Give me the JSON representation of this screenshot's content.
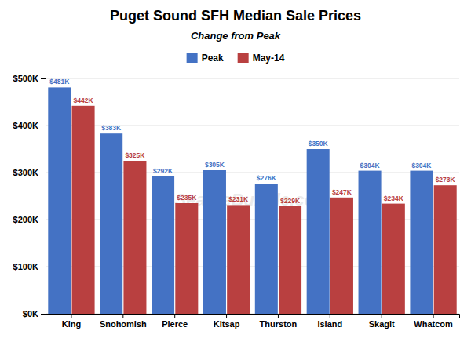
{
  "chart_data": {
    "type": "bar",
    "title": "Puget Sound SFH Median Sale Prices",
    "subtitle": "Change from Peak",
    "categories": [
      "King",
      "Snohomish",
      "Pierce",
      "Kitsap",
      "Thurston",
      "Island",
      "Skagit",
      "Whatcom"
    ],
    "series": [
      {
        "name": "Peak",
        "color": "#4472C4",
        "values": [
          481000,
          383000,
          292000,
          305000,
          276000,
          350000,
          304000,
          304000
        ],
        "value_labels": [
          "$481K",
          "$383K",
          "$292K",
          "$305K",
          "$276K",
          "$350K",
          "$304K",
          "$304K"
        ]
      },
      {
        "name": "May-14",
        "color": "#B94040",
        "values": [
          442000,
          325000,
          235000,
          231000,
          229000,
          247000,
          234000,
          273000
        ],
        "value_labels": [
          "$442K",
          "$325K",
          "$235K",
          "$231K",
          "$229K",
          "$247K",
          "$234K",
          "$273K"
        ]
      }
    ],
    "ylim": [
      0,
      500000
    ],
    "yticks": [
      {
        "value": 0,
        "label": "$0K"
      },
      {
        "value": 100000,
        "label": "$100K"
      },
      {
        "value": 200000,
        "label": "$200K"
      },
      {
        "value": 300000,
        "label": "$300K"
      },
      {
        "value": 400000,
        "label": "$400K"
      },
      {
        "value": 500000,
        "label": "$500K"
      }
    ],
    "grid": true,
    "legend": "top",
    "data_labels": true,
    "annotations": [
      "SeattleBubble.com"
    ]
  }
}
